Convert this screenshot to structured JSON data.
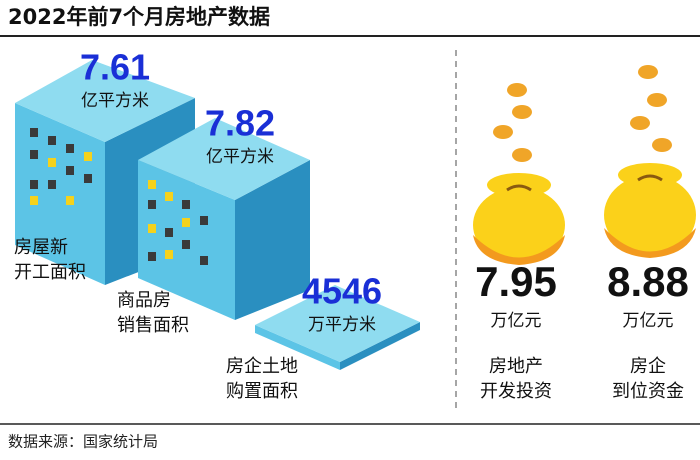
{
  "title": "2022年前7个月房地产数据",
  "items": [
    {
      "value": 7.61,
      "unit": "亿平方米",
      "label": [
        "房屋新",
        "开工面积"
      ]
    },
    {
      "value": 7.82,
      "unit": "亿平方米",
      "label": [
        "商品房",
        "销售面积"
      ]
    },
    {
      "value": 4546,
      "unit": "万平方米",
      "label": [
        "房企土地",
        "购置面积"
      ]
    },
    {
      "value": 7.95,
      "unit": "万亿元",
      "label": [
        "房地产",
        "开发投资"
      ]
    },
    {
      "value": 8.88,
      "unit": "万亿元",
      "label": [
        "房企",
        "到位资金"
      ]
    }
  ],
  "source": "数据来源：国家统计局"
}
